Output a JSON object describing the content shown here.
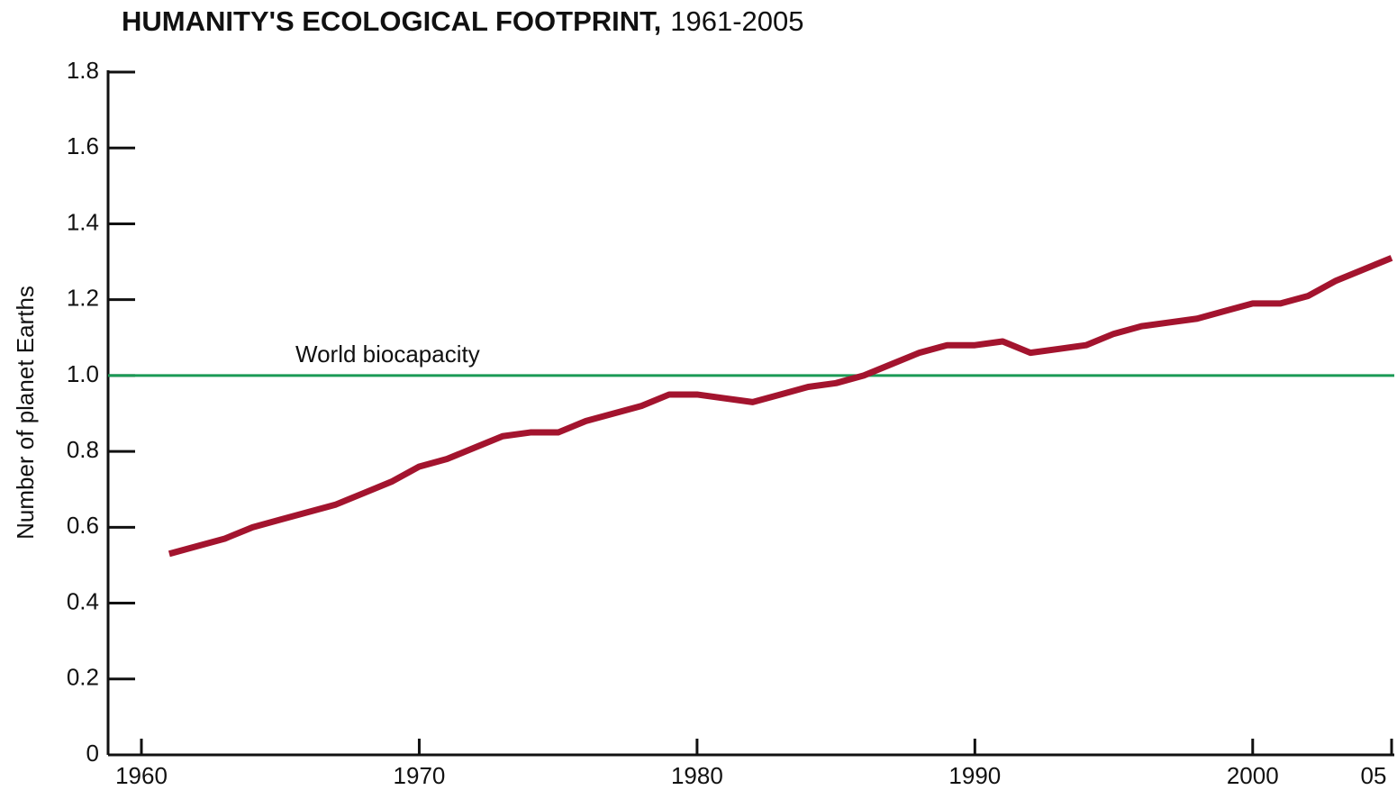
{
  "chart_data": {
    "type": "line",
    "title": "HUMANITY'S ECOLOGICAL FOOTPRINT,",
    "subtitle": "1961-2005",
    "y_label": "Number of planet Earths",
    "x": [
      1961,
      1962,
      1963,
      1964,
      1965,
      1966,
      1967,
      1968,
      1969,
      1970,
      1971,
      1972,
      1973,
      1974,
      1975,
      1976,
      1977,
      1978,
      1979,
      1980,
      1981,
      1982,
      1983,
      1984,
      1985,
      1986,
      1987,
      1988,
      1989,
      1990,
      1991,
      1992,
      1993,
      1994,
      1995,
      1996,
      1997,
      1998,
      1999,
      2000,
      2001,
      2002,
      2003,
      2004,
      2005
    ],
    "values": [
      0.53,
      0.55,
      0.57,
      0.6,
      0.62,
      0.64,
      0.66,
      0.69,
      0.72,
      0.76,
      0.78,
      0.81,
      0.84,
      0.85,
      0.85,
      0.88,
      0.9,
      0.92,
      0.95,
      0.95,
      0.94,
      0.93,
      0.95,
      0.97,
      0.98,
      1.0,
      1.03,
      1.06,
      1.08,
      1.08,
      1.09,
      1.06,
      1.07,
      1.08,
      1.11,
      1.13,
      1.14,
      1.15,
      1.17,
      1.19,
      1.19,
      1.21,
      1.25,
      1.28,
      1.31
    ],
    "color": "#a3142e",
    "reference_line": {
      "value": 1,
      "label": "World biocapacity",
      "color": "#1a9a55"
    },
    "xlim": [
      1958.8,
      2005
    ],
    "xticks": [
      1960,
      1970,
      1980,
      1990,
      2000,
      {
        "value": 2005,
        "label": "05"
      }
    ],
    "ylim": [
      0,
      1.8
    ],
    "yticks": [
      0,
      0.2,
      0.4,
      0.6,
      0.8,
      {
        "value": 1,
        "label": "1.0"
      },
      1.2,
      1.4,
      1.6,
      1.8
    ]
  }
}
